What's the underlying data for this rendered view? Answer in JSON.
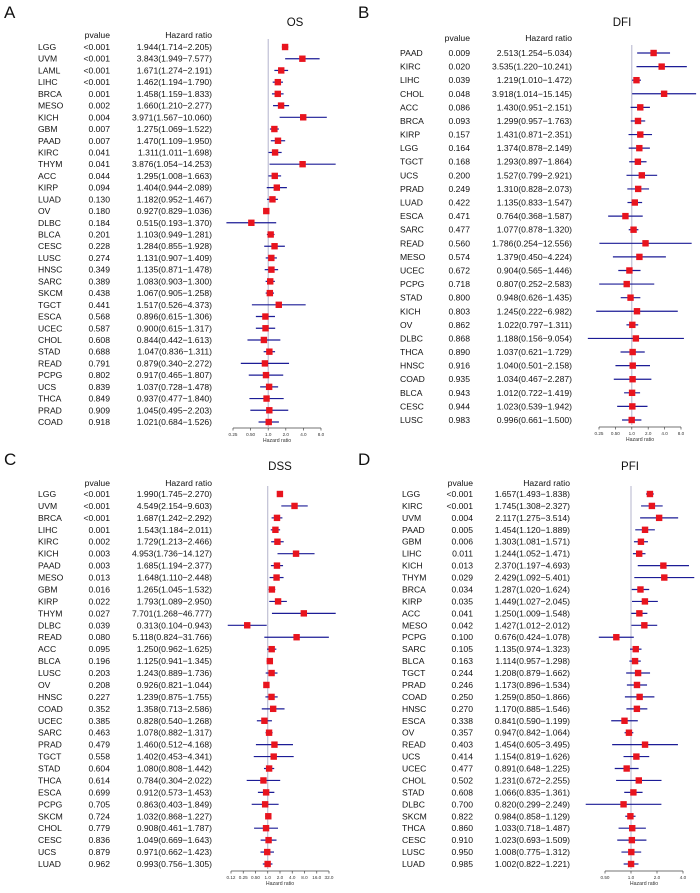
{
  "colors": {
    "marker": "#e8141e",
    "ci_line": "#1c1c96",
    "reference_line": "#b4b4cc",
    "text": "#111111"
  },
  "chart_data": [
    {
      "type": "forest",
      "panel_letter": "A",
      "title": "OS",
      "header_pvalue": "pvalue",
      "header_hr": "Hazard ratio",
      "xlabel": "Hazard ratio",
      "xscale": "log2",
      "reference": 1,
      "xticks": [
        "0.25",
        "0.50",
        "1.0",
        "2.0",
        "4.0",
        "8.0"
      ],
      "columns": [
        "cancer",
        "pvalue",
        "hr",
        "lower",
        "upper"
      ],
      "rows": [
        [
          "LGG",
          "<0.001",
          1.944,
          1.714,
          2.205
        ],
        [
          "UVM",
          "<0.001",
          3.843,
          1.949,
          7.577
        ],
        [
          "LAML",
          "<0.001",
          1.671,
          1.274,
          2.191
        ],
        [
          "LIHC",
          "<0.001",
          1.462,
          1.194,
          1.79
        ],
        [
          "BRCA",
          "0.001",
          1.458,
          1.159,
          1.833
        ],
        [
          "MESO",
          "0.002",
          1.66,
          1.21,
          2.277
        ],
        [
          "KICH",
          "0.004",
          3.971,
          1.567,
          10.06
        ],
        [
          "GBM",
          "0.007",
          1.275,
          1.069,
          1.522
        ],
        [
          "PAAD",
          "0.007",
          1.47,
          1.109,
          1.95
        ],
        [
          "KIRC",
          "0.041",
          1.311,
          1.011,
          1.698
        ],
        [
          "THYM",
          "0.041",
          3.876,
          1.054,
          14.253
        ],
        [
          "ACC",
          "0.044",
          1.295,
          1.008,
          1.663
        ],
        [
          "KIRP",
          "0.094",
          1.404,
          0.944,
          2.089
        ],
        [
          "LUAD",
          "0.130",
          1.182,
          0.952,
          1.467
        ],
        [
          "OV",
          "0.180",
          0.927,
          0.829,
          1.036
        ],
        [
          "DLBC",
          "0.184",
          0.515,
          0.193,
          1.37
        ],
        [
          "BLCA",
          "0.201",
          1.103,
          0.949,
          1.281
        ],
        [
          "CESC",
          "0.228",
          1.284,
          0.855,
          1.928
        ],
        [
          "LUSC",
          "0.274",
          1.131,
          0.907,
          1.409
        ],
        [
          "HNSC",
          "0.349",
          1.135,
          0.871,
          1.478
        ],
        [
          "SARC",
          "0.389",
          1.083,
          0.903,
          1.3
        ],
        [
          "SKCM",
          "0.438",
          1.067,
          0.905,
          1.258
        ],
        [
          "TGCT",
          "0.441",
          1.517,
          0.526,
          4.373
        ],
        [
          "ESCA",
          "0.568",
          0.896,
          0.615,
          1.306
        ],
        [
          "UCEC",
          "0.587",
          0.9,
          0.615,
          1.317
        ],
        [
          "CHOL",
          "0.608",
          0.844,
          0.442,
          1.613
        ],
        [
          "STAD",
          "0.688",
          1.047,
          0.836,
          1.311
        ],
        [
          "READ",
          "0.791",
          0.879,
          0.34,
          2.272
        ],
        [
          "PCPG",
          "0.802",
          0.917,
          0.465,
          1.807
        ],
        [
          "UCS",
          "0.839",
          1.037,
          0.728,
          1.478
        ],
        [
          "THCA",
          "0.849",
          0.937,
          0.477,
          1.84
        ],
        [
          "PRAD",
          "0.909",
          1.045,
          0.495,
          2.203
        ],
        [
          "COAD",
          "0.918",
          1.021,
          0.684,
          1.526
        ]
      ]
    },
    {
      "type": "forest",
      "panel_letter": "B",
      "title": "DFI",
      "header_pvalue": "pvalue",
      "header_hr": "Hazard ratio",
      "xlabel": "Hazard ratio",
      "xscale": "log2",
      "reference": 1,
      "xticks": [
        "0.25",
        "0.50",
        "1.0",
        "2.0",
        "4.0",
        "8.0"
      ],
      "columns": [
        "cancer",
        "pvalue",
        "hr",
        "lower",
        "upper"
      ],
      "rows": [
        [
          "PAAD",
          "0.009",
          2.513,
          1.254,
          5.034
        ],
        [
          "KIRC",
          "0.020",
          3.535,
          1.22,
          10.241
        ],
        [
          "LIHC",
          "0.039",
          1.219,
          1.01,
          1.472
        ],
        [
          "CHOL",
          "0.048",
          3.918,
          1.014,
          15.145
        ],
        [
          "ACC",
          "0.086",
          1.43,
          0.951,
          2.151
        ],
        [
          "BRCA",
          "0.093",
          1.299,
          0.957,
          1.763
        ],
        [
          "KIRP",
          "0.157",
          1.431,
          0.871,
          2.351
        ],
        [
          "LGG",
          "0.164",
          1.374,
          0.878,
          2.149
        ],
        [
          "TGCT",
          "0.168",
          1.293,
          0.897,
          1.864
        ],
        [
          "UCS",
          "0.200",
          1.527,
          0.799,
          2.921
        ],
        [
          "PRAD",
          "0.249",
          1.31,
          0.828,
          2.073
        ],
        [
          "LUAD",
          "0.422",
          1.135,
          0.833,
          1.547
        ],
        [
          "ESCA",
          "0.471",
          0.764,
          0.368,
          1.587
        ],
        [
          "SARC",
          "0.477",
          1.077,
          0.878,
          1.32
        ],
        [
          "READ",
          "0.560",
          1.786,
          0.254,
          12.556
        ],
        [
          "MESO",
          "0.574",
          1.379,
          0.45,
          4.224
        ],
        [
          "UCEC",
          "0.672",
          0.904,
          0.565,
          1.446
        ],
        [
          "PCPG",
          "0.718",
          0.807,
          0.252,
          2.583
        ],
        [
          "STAD",
          "0.800",
          0.948,
          0.626,
          1.435
        ],
        [
          "KICH",
          "0.803",
          1.245,
          0.222,
          6.982
        ],
        [
          "OV",
          "0.862",
          1.022,
          0.797,
          1.311
        ],
        [
          "DLBC",
          "0.868",
          1.188,
          0.156,
          9.054
        ],
        [
          "THCA",
          "0.890",
          1.037,
          0.621,
          1.729
        ],
        [
          "HNSC",
          "0.916",
          1.04,
          0.501,
          2.158
        ],
        [
          "COAD",
          "0.935",
          1.034,
          0.467,
          2.287
        ],
        [
          "BLCA",
          "0.943",
          1.012,
          0.722,
          1.419
        ],
        [
          "CESC",
          "0.944",
          1.023,
          0.539,
          1.942
        ],
        [
          "LUSC",
          "0.983",
          0.996,
          0.661,
          1.5
        ]
      ]
    },
    {
      "type": "forest",
      "panel_letter": "C",
      "title": "DSS",
      "header_pvalue": "pvalue",
      "header_hr": "Hazard ratio",
      "xlabel": "Hazard ratio",
      "xscale": "log2",
      "reference": 1,
      "xticks": [
        "0.12",
        "0.25",
        "0.50",
        "1.0",
        "2.0",
        "4.0",
        "8.0",
        "16.0",
        "32.0"
      ],
      "columns": [
        "cancer",
        "pvalue",
        "hr",
        "lower",
        "upper"
      ],
      "rows": [
        [
          "LGG",
          "<0.001",
          1.99,
          1.745,
          2.27
        ],
        [
          "UVM",
          "<0.001",
          4.549,
          2.154,
          9.603
        ],
        [
          "BRCA",
          "<0.001",
          1.687,
          1.242,
          2.292
        ],
        [
          "LIHC",
          "0.001",
          1.543,
          1.184,
          2.011
        ],
        [
          "KIRC",
          "0.002",
          1.729,
          1.213,
          2.466
        ],
        [
          "KICH",
          "0.003",
          4.953,
          1.736,
          14.127
        ],
        [
          "PAAD",
          "0.003",
          1.685,
          1.194,
          2.377
        ],
        [
          "MESO",
          "0.013",
          1.648,
          1.11,
          2.448
        ],
        [
          "GBM",
          "0.016",
          1.265,
          1.045,
          1.532
        ],
        [
          "KIRP",
          "0.022",
          1.793,
          1.089,
          2.95
        ],
        [
          "THYM",
          "0.027",
          7.701,
          1.268,
          46.777
        ],
        [
          "DLBC",
          "0.039",
          0.313,
          0.104,
          0.943
        ],
        [
          "READ",
          "0.080",
          5.118,
          0.824,
          31.766
        ],
        [
          "ACC",
          "0.095",
          1.25,
          0.962,
          1.625
        ],
        [
          "BLCA",
          "0.196",
          1.125,
          0.941,
          1.345
        ],
        [
          "LUSC",
          "0.203",
          1.243,
          0.889,
          1.736
        ],
        [
          "OV",
          "0.208",
          0.926,
          0.821,
          1.044
        ],
        [
          "HNSC",
          "0.227",
          1.239,
          0.875,
          1.755
        ],
        [
          "COAD",
          "0.352",
          1.358,
          0.713,
          2.586
        ],
        [
          "UCEC",
          "0.385",
          0.828,
          0.54,
          1.268
        ],
        [
          "SARC",
          "0.463",
          1.078,
          0.882,
          1.317
        ],
        [
          "PRAD",
          "0.479",
          1.46,
          0.512,
          4.168
        ],
        [
          "TGCT",
          "0.558",
          1.402,
          0.453,
          4.341
        ],
        [
          "STAD",
          "0.604",
          1.08,
          0.808,
          1.442
        ],
        [
          "THCA",
          "0.614",
          0.784,
          0.304,
          2.022
        ],
        [
          "ESCA",
          "0.699",
          0.912,
          0.573,
          1.453
        ],
        [
          "PCPG",
          "0.705",
          0.863,
          0.403,
          1.849
        ],
        [
          "SKCM",
          "0.724",
          1.032,
          0.868,
          1.227
        ],
        [
          "CHOL",
          "0.779",
          0.908,
          0.461,
          1.787
        ],
        [
          "CESC",
          "0.836",
          1.049,
          0.669,
          1.643
        ],
        [
          "UCS",
          "0.879",
          0.971,
          0.662,
          1.423
        ],
        [
          "LUAD",
          "0.962",
          0.993,
          0.756,
          1.305
        ]
      ]
    },
    {
      "type": "forest",
      "panel_letter": "D",
      "title": "PFI",
      "header_pvalue": "pvalue",
      "header_hr": "Hazard ratio",
      "xlabel": "Hazard ratio",
      "xscale": "log2",
      "reference": 1,
      "xticks": [
        "0.50",
        "1.0",
        "2.0",
        "4.0"
      ],
      "columns": [
        "cancer",
        "pvalue",
        "hr",
        "lower",
        "upper"
      ],
      "rows": [
        [
          "LGG",
          "<0.001",
          1.657,
          1.493,
          1.838
        ],
        [
          "KIRC",
          "<0.001",
          1.745,
          1.308,
          2.327
        ],
        [
          "UVM",
          "0.004",
          2.117,
          1.275,
          3.514
        ],
        [
          "PAAD",
          "0.005",
          1.454,
          1.12,
          1.889
        ],
        [
          "GBM",
          "0.006",
          1.303,
          1.081,
          1.571
        ],
        [
          "LIHC",
          "0.011",
          1.244,
          1.052,
          1.471
        ],
        [
          "KICH",
          "0.013",
          2.37,
          1.197,
          4.693
        ],
        [
          "THYM",
          "0.029",
          2.429,
          1.092,
          5.401
        ],
        [
          "BRCA",
          "0.034",
          1.287,
          1.02,
          1.624
        ],
        [
          "KIRP",
          "0.035",
          1.449,
          1.027,
          2.045
        ],
        [
          "ACC",
          "0.041",
          1.25,
          1.009,
          1.548
        ],
        [
          "MESO",
          "0.042",
          1.427,
          1.012,
          2.012
        ],
        [
          "PCPG",
          "0.100",
          0.676,
          0.424,
          1.078
        ],
        [
          "SARC",
          "0.105",
          1.135,
          0.974,
          1.323
        ],
        [
          "BLCA",
          "0.163",
          1.114,
          0.957,
          1.298
        ],
        [
          "TGCT",
          "0.244",
          1.208,
          0.879,
          1.662
        ],
        [
          "PRAD",
          "0.246",
          1.173,
          0.896,
          1.534
        ],
        [
          "COAD",
          "0.250",
          1.259,
          0.85,
          1.866
        ],
        [
          "HNSC",
          "0.270",
          1.17,
          0.885,
          1.546
        ],
        [
          "ESCA",
          "0.338",
          0.841,
          0.59,
          1.199
        ],
        [
          "OV",
          "0.357",
          0.947,
          0.842,
          1.064
        ],
        [
          "READ",
          "0.403",
          1.454,
          0.605,
          3.495
        ],
        [
          "UCS",
          "0.414",
          1.154,
          0.819,
          1.626
        ],
        [
          "UCEC",
          "0.477",
          0.891,
          0.648,
          1.225
        ],
        [
          "CHOL",
          "0.502",
          1.231,
          0.672,
          2.255
        ],
        [
          "STAD",
          "0.608",
          1.066,
          0.835,
          1.361
        ],
        [
          "DLBC",
          "0.700",
          0.82,
          0.299,
          2.249
        ],
        [
          "SKCM",
          "0.822",
          0.984,
          0.858,
          1.129
        ],
        [
          "THCA",
          "0.860",
          1.033,
          0.718,
          1.487
        ],
        [
          "CESC",
          "0.910",
          1.023,
          0.693,
          1.509
        ],
        [
          "LUSC",
          "0.950",
          1.008,
          0.775,
          1.312
        ],
        [
          "LUAD",
          "0.985",
          1.002,
          0.822,
          1.221
        ]
      ]
    }
  ]
}
